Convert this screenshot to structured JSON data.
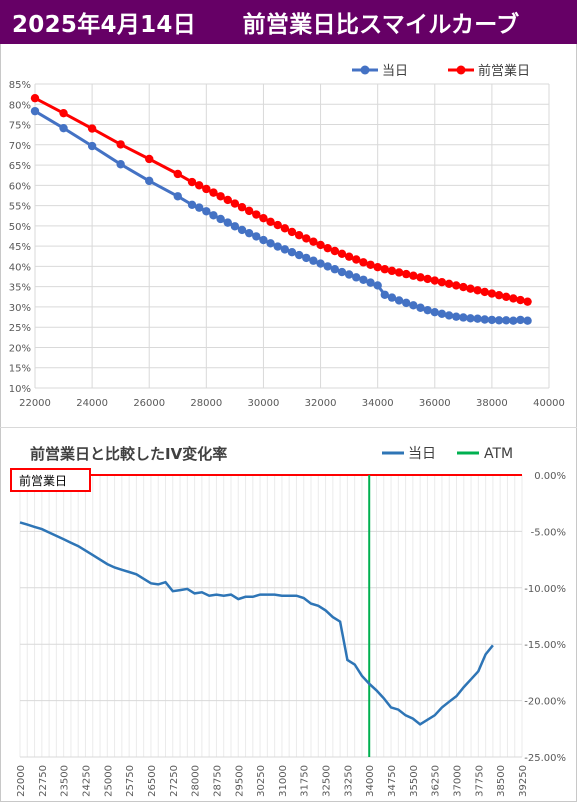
{
  "header": {
    "title": "2025年4月14日　　前営業日比スマイルカーブ",
    "background": "#660066",
    "color": "#ffffff"
  },
  "chart_data": [
    {
      "type": "line",
      "x_unit": "strike",
      "ylabel_format": "percent",
      "xlim": [
        22000,
        40000
      ],
      "ylim": [
        10,
        85
      ],
      "xticks": [
        22000,
        24000,
        26000,
        28000,
        30000,
        32000,
        34000,
        36000,
        38000,
        40000
      ],
      "yticks": [
        10,
        15,
        20,
        25,
        30,
        35,
        40,
        45,
        50,
        55,
        60,
        65,
        70,
        75,
        80,
        85
      ],
      "grid": true,
      "legend_position": "top-right",
      "series": [
        {
          "name": "当日",
          "color": "#4472c4",
          "points": [
            [
              22000,
              78.3
            ],
            [
              23000,
              74.1
            ],
            [
              24000,
              69.7
            ],
            [
              25000,
              65.2
            ],
            [
              26000,
              61.1
            ],
            [
              27000,
              57.3
            ],
            [
              27500,
              55.2
            ],
            [
              27750,
              54.5
            ],
            [
              28000,
              53.6
            ],
            [
              28250,
              52.6
            ],
            [
              28500,
              51.7
            ],
            [
              28750,
              50.8
            ],
            [
              29000,
              49.9
            ],
            [
              29250,
              49.0
            ],
            [
              29500,
              48.2
            ],
            [
              29750,
              47.4
            ],
            [
              30000,
              46.5
            ],
            [
              30250,
              45.7
            ],
            [
              30500,
              44.9
            ],
            [
              30750,
              44.2
            ],
            [
              31000,
              43.5
            ],
            [
              31250,
              42.8
            ],
            [
              31500,
              42.1
            ],
            [
              31750,
              41.4
            ],
            [
              32000,
              40.7
            ],
            [
              32250,
              40.0
            ],
            [
              32500,
              39.3
            ],
            [
              32750,
              38.6
            ],
            [
              33000,
              38.0
            ],
            [
              33250,
              37.3
            ],
            [
              33500,
              36.7
            ],
            [
              33750,
              36.0
            ],
            [
              34000,
              35.3
            ],
            [
              34250,
              33.0
            ],
            [
              34500,
              32.3
            ],
            [
              34750,
              31.6
            ],
            [
              35000,
              31.0
            ],
            [
              35250,
              30.4
            ],
            [
              35500,
              29.8
            ],
            [
              35750,
              29.2
            ],
            [
              36000,
              28.7
            ],
            [
              36250,
              28.3
            ],
            [
              36500,
              27.9
            ],
            [
              36750,
              27.6
            ],
            [
              37000,
              27.4
            ],
            [
              37250,
              27.2
            ],
            [
              37500,
              27.1
            ],
            [
              37750,
              26.9
            ],
            [
              38000,
              26.8
            ],
            [
              38250,
              26.7
            ],
            [
              38500,
              26.7
            ],
            [
              38750,
              26.6
            ],
            [
              39000,
              26.8
            ],
            [
              39250,
              26.6
            ]
          ]
        },
        {
          "name": "前営業日",
          "color": "#ff0000",
          "points": [
            [
              22000,
              81.5
            ],
            [
              23000,
              77.8
            ],
            [
              24000,
              74.0
            ],
            [
              25000,
              70.1
            ],
            [
              26000,
              66.5
            ],
            [
              27000,
              62.8
            ],
            [
              27500,
              60.8
            ],
            [
              27750,
              60.0
            ],
            [
              28000,
              59.1
            ],
            [
              28250,
              58.2
            ],
            [
              28500,
              57.3
            ],
            [
              28750,
              56.4
            ],
            [
              29000,
              55.5
            ],
            [
              29250,
              54.6
            ],
            [
              29500,
              53.7
            ],
            [
              29750,
              52.8
            ],
            [
              30000,
              51.9
            ],
            [
              30250,
              51.0
            ],
            [
              30500,
              50.2
            ],
            [
              30750,
              49.4
            ],
            [
              31000,
              48.5
            ],
            [
              31250,
              47.7
            ],
            [
              31500,
              46.9
            ],
            [
              31750,
              46.1
            ],
            [
              32000,
              45.3
            ],
            [
              32250,
              44.5
            ],
            [
              32500,
              43.8
            ],
            [
              32750,
              43.1
            ],
            [
              33000,
              42.4
            ],
            [
              33250,
              41.7
            ],
            [
              33500,
              41.0
            ],
            [
              33750,
              40.4
            ],
            [
              34000,
              39.8
            ],
            [
              34250,
              39.3
            ],
            [
              34500,
              38.9
            ],
            [
              34750,
              38.5
            ],
            [
              35000,
              38.1
            ],
            [
              35250,
              37.7
            ],
            [
              35500,
              37.3
            ],
            [
              35750,
              36.9
            ],
            [
              36000,
              36.5
            ],
            [
              36250,
              36.1
            ],
            [
              36500,
              35.7
            ],
            [
              36750,
              35.3
            ],
            [
              37000,
              34.9
            ],
            [
              37250,
              34.5
            ],
            [
              37500,
              34.1
            ],
            [
              37750,
              33.7
            ],
            [
              38000,
              33.3
            ],
            [
              38250,
              32.9
            ],
            [
              38500,
              32.5
            ],
            [
              38750,
              32.1
            ],
            [
              39000,
              31.7
            ],
            [
              39250,
              31.3
            ]
          ]
        }
      ]
    },
    {
      "type": "line",
      "title": "前営業日と比較したIV変化率",
      "ylabel_format": "percent",
      "ylim": [
        -25,
        0
      ],
      "yticks": [
        0,
        -5,
        -10,
        -15,
        -20,
        -25
      ],
      "xtick_labels": [
        "22000",
        "22750",
        "23500",
        "24250",
        "25000",
        "25750",
        "26500",
        "27250",
        "28000",
        "28750",
        "29500",
        "30250",
        "31000",
        "31750",
        "32500",
        "33250",
        "34000",
        "34750",
        "35500",
        "36250",
        "37000",
        "37750",
        "38500",
        "39250"
      ],
      "grid": true,
      "legend_position": "top-right",
      "zero_line_color": "#ff0000",
      "zero_box_label": "前営業日",
      "atm": {
        "name": "ATM",
        "x": 34000,
        "color": "#00b050"
      },
      "series": [
        {
          "name": "当日",
          "color": "#2e75b6",
          "points": [
            [
              22000,
              -4.2
            ],
            [
              22250,
              -4.4
            ],
            [
              22500,
              -4.6
            ],
            [
              22750,
              -4.8
            ],
            [
              23000,
              -5.1
            ],
            [
              23250,
              -5.4
            ],
            [
              23500,
              -5.7
            ],
            [
              23750,
              -6.0
            ],
            [
              24000,
              -6.3
            ],
            [
              24250,
              -6.7
            ],
            [
              24500,
              -7.1
            ],
            [
              24750,
              -7.5
            ],
            [
              25000,
              -7.9
            ],
            [
              25250,
              -8.2
            ],
            [
              25500,
              -8.4
            ],
            [
              25750,
              -8.6
            ],
            [
              26000,
              -8.8
            ],
            [
              26250,
              -9.2
            ],
            [
              26500,
              -9.6
            ],
            [
              26750,
              -9.7
            ],
            [
              27000,
              -9.5
            ],
            [
              27250,
              -10.3
            ],
            [
              27500,
              -10.2
            ],
            [
              27750,
              -10.1
            ],
            [
              28000,
              -10.5
            ],
            [
              28250,
              -10.4
            ],
            [
              28500,
              -10.7
            ],
            [
              28750,
              -10.6
            ],
            [
              29000,
              -10.7
            ],
            [
              29250,
              -10.6
            ],
            [
              29500,
              -11.0
            ],
            [
              29750,
              -10.8
            ],
            [
              30000,
              -10.8
            ],
            [
              30250,
              -10.6
            ],
            [
              30500,
              -10.6
            ],
            [
              30750,
              -10.6
            ],
            [
              31000,
              -10.7
            ],
            [
              31250,
              -10.7
            ],
            [
              31500,
              -10.7
            ],
            [
              31750,
              -10.9
            ],
            [
              32000,
              -11.4
            ],
            [
              32250,
              -11.6
            ],
            [
              32500,
              -12.0
            ],
            [
              32750,
              -12.6
            ],
            [
              33000,
              -13.0
            ],
            [
              33250,
              -16.4
            ],
            [
              33500,
              -16.8
            ],
            [
              33750,
              -17.8
            ],
            [
              34000,
              -18.5
            ],
            [
              34250,
              -19.1
            ],
            [
              34500,
              -19.8
            ],
            [
              34750,
              -20.6
            ],
            [
              35000,
              -20.8
            ],
            [
              35250,
              -21.3
            ],
            [
              35500,
              -21.6
            ],
            [
              35750,
              -22.1
            ],
            [
              36000,
              -21.7
            ],
            [
              36250,
              -21.3
            ],
            [
              36500,
              -20.6
            ],
            [
              36750,
              -20.1
            ],
            [
              37000,
              -19.6
            ],
            [
              37250,
              -18.8
            ],
            [
              37500,
              -18.1
            ],
            [
              37750,
              -17.4
            ],
            [
              38000,
              -15.9
            ],
            [
              38250,
              -15.1
            ]
          ]
        }
      ]
    }
  ]
}
